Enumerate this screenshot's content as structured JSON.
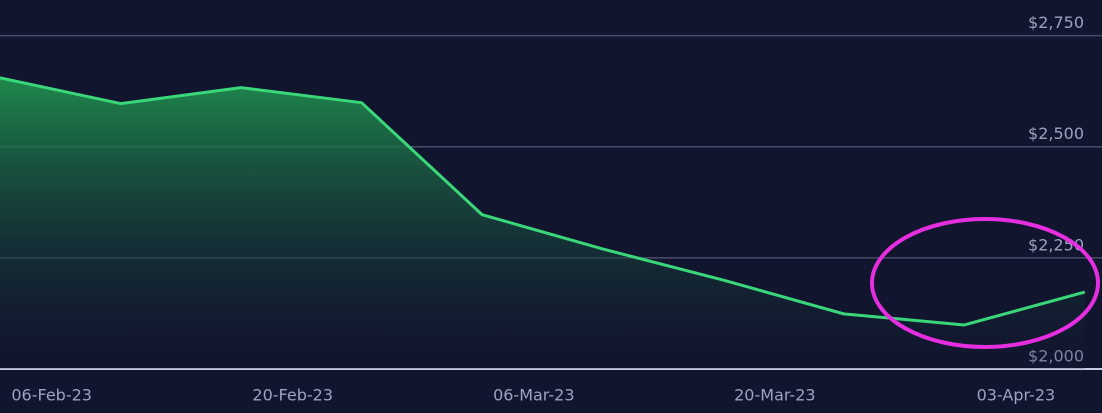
{
  "chart_data": {
    "type": "area",
    "x": [
      "2023-02-03",
      "2023-02-10",
      "2023-02-17",
      "2023-02-24",
      "2023-03-03",
      "2023-03-10",
      "2023-03-17",
      "2023-03-24",
      "2023-03-31",
      "2023-04-07"
    ],
    "values": [
      2655,
      2597,
      2633,
      2599,
      2347,
      2270,
      2200,
      2124,
      2099,
      2173
    ],
    "color": "#3ad67a",
    "xlim": [
      "2023-02-03",
      "2023-04-08"
    ],
    "xticks": [
      {
        "value": "2023-02-06",
        "label": "06-Feb-23"
      },
      {
        "value": "2023-02-20",
        "label": "20-Feb-23"
      },
      {
        "value": "2023-03-06",
        "label": "06-Mar-23"
      },
      {
        "value": "2023-03-20",
        "label": "20-Mar-23"
      },
      {
        "value": "2023-04-03",
        "label": "03-Apr-23"
      }
    ],
    "ylim": [
      2000,
      2830
    ],
    "yticks": [
      {
        "value": 2000,
        "label": "$2,000"
      },
      {
        "value": 2250,
        "label": "$2,250"
      },
      {
        "value": 2500,
        "label": "$2,500"
      },
      {
        "value": 2750,
        "label": "$2,750"
      }
    ],
    "grid": true
  }
}
